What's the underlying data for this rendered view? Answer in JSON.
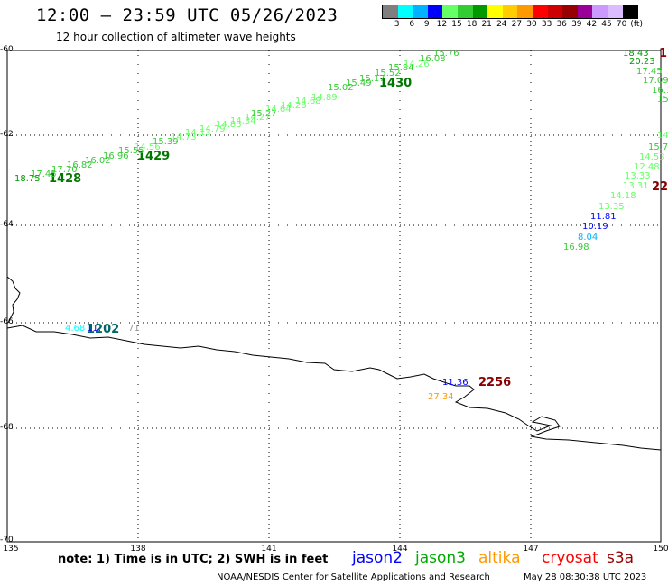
{
  "header": {
    "title": "12:00 – 23:59 UTC 05/26/2023",
    "subtitle": "12 hour collection of altimeter wave heights"
  },
  "scale": {
    "colors": [
      "#7f7f7f",
      "#00ffff",
      "#00b2ff",
      "#0000ff",
      "#66ff66",
      "#33cc33",
      "#009900",
      "#ffff00",
      "#ffcc00",
      "#ff9900",
      "#ff0000",
      "#cc0000",
      "#990000",
      "#990099",
      "#cc99ff",
      "#ddbbff",
      "#000000"
    ],
    "labels": [
      "3",
      "6",
      "9",
      "12",
      "15",
      "18",
      "21",
      "24",
      "27",
      "30",
      "33",
      "36",
      "39",
      "42",
      "45",
      "70",
      "(ft)"
    ]
  },
  "axes": {
    "x_ticks": [
      "135",
      "138",
      "141",
      "144",
      "147",
      "150"
    ],
    "y_ticks": [
      "-60",
      "-62",
      "-64",
      "-66",
      "-68",
      "-70"
    ]
  },
  "tracks": [
    {
      "id": "1428",
      "label": "1428",
      "color": "#007700"
    },
    {
      "id": "1429",
      "label": "1429",
      "color": "#007700"
    },
    {
      "id": "1430",
      "label": "1430",
      "color": "#007700"
    },
    {
      "id": "1202",
      "label": "1202",
      "color": "#006666"
    },
    {
      "id": "2256",
      "label": "2256",
      "color": "#880000"
    },
    {
      "id": "22",
      "label": "22",
      "color": "#880000"
    },
    {
      "id": "1",
      "label": "1",
      "color": "#880000"
    }
  ],
  "readings": [
    {
      "v": "18.75",
      "c": "#009900"
    },
    {
      "v": "17.45",
      "c": "#33cc33"
    },
    {
      "v": "17.70",
      "c": "#33cc33"
    },
    {
      "v": "16.82",
      "c": "#33cc33"
    },
    {
      "v": "16.02",
      "c": "#33cc33"
    },
    {
      "v": "16.96",
      "c": "#33cc33"
    },
    {
      "v": "15.55",
      "c": "#33cc33"
    },
    {
      "v": "14.56",
      "c": "#66ff66"
    },
    {
      "v": "15.39",
      "c": "#33cc33"
    },
    {
      "v": "14.73",
      "c": "#66ff66"
    },
    {
      "v": "14.13",
      "c": "#66ff66"
    },
    {
      "v": "14.79",
      "c": "#66ff66"
    },
    {
      "v": "14.83",
      "c": "#66ff66"
    },
    {
      "v": "14.34",
      "c": "#66ff66"
    },
    {
      "v": "14.27",
      "c": "#66ff66"
    },
    {
      "v": "15.27",
      "c": "#33cc33"
    },
    {
      "v": "14.64",
      "c": "#66ff66"
    },
    {
      "v": "14.28",
      "c": "#66ff66"
    },
    {
      "v": "14.68",
      "c": "#66ff66"
    },
    {
      "v": "14.89",
      "c": "#66ff66"
    },
    {
      "v": "15.02",
      "c": "#33cc33"
    },
    {
      "v": "15.49",
      "c": "#33cc33"
    },
    {
      "v": "15.17",
      "c": "#33cc33"
    },
    {
      "v": "15.52",
      "c": "#33cc33"
    },
    {
      "v": "15.84",
      "c": "#33cc33"
    },
    {
      "v": "14.26",
      "c": "#66ff66"
    },
    {
      "v": "16.08",
      "c": "#33cc33"
    },
    {
      "v": "15.76",
      "c": "#33cc33"
    },
    {
      "v": "18.43",
      "c": "#009900"
    },
    {
      "v": "20.23",
      "c": "#009900"
    },
    {
      "v": "17.45",
      "c": "#33cc33"
    },
    {
      "v": "17.09",
      "c": "#33cc33"
    },
    {
      "v": "16.1",
      "c": "#33cc33"
    },
    {
      "v": "15",
      "c": "#33cc33"
    },
    {
      "v": "14",
      "c": "#66ff66"
    },
    {
      "v": "15.7",
      "c": "#33cc33"
    },
    {
      "v": "14.53",
      "c": "#66ff66"
    },
    {
      "v": "12.48",
      "c": "#66ff66"
    },
    {
      "v": "13.33",
      "c": "#66ff66"
    },
    {
      "v": "13.31",
      "c": "#66ff66"
    },
    {
      "v": "14.18",
      "c": "#66ff66"
    },
    {
      "v": "13.35",
      "c": "#66ff66"
    },
    {
      "v": "11.81",
      "c": "#0000ff"
    },
    {
      "v": "10.19",
      "c": "#0000ff"
    },
    {
      "v": "8.04",
      "c": "#00b2ff"
    },
    {
      "v": "16.98",
      "c": "#33cc33"
    },
    {
      "v": "4.68",
      "c": "#00ffff"
    },
    {
      "v": "11.",
      "c": "#0000ff"
    },
    {
      "v": "71",
      "c": "#999999"
    },
    {
      "v": "11.36",
      "c": "#0000ff"
    },
    {
      "v": "27.34",
      "c": "#ff9900"
    }
  ],
  "footer": {
    "note": "note:  1) Time is in UTC;  2) SWH is in feet",
    "missions": [
      {
        "name": "jason2",
        "color": "#0000ff"
      },
      {
        "name": "jason3",
        "color": "#00aa00"
      },
      {
        "name": "altika",
        "color": "#ff9900"
      },
      {
        "name": "cryosat",
        "color": "#ff0000"
      },
      {
        "name": "s3a",
        "color": "#990000"
      }
    ],
    "credit": "NOAA/NESDIS Center for Satellite Applications and Research",
    "timestamp": "May 28 08:30:38 UTC 2023"
  }
}
